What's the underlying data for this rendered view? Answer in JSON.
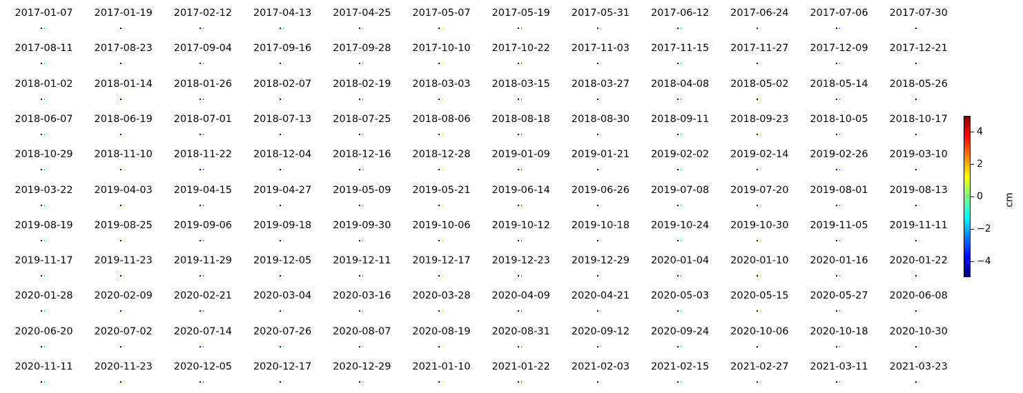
{
  "chart_data": {
    "type": "heatmap",
    "title": "",
    "layout": "grid",
    "colormap": "jet",
    "colors": {
      "outside": "#000000",
      "low": "#00007f",
      "mid": "#7fff7f",
      "high": "#7f0000"
    },
    "panels": [
      "2017-01-07",
      "2017-01-19",
      "2017-02-12",
      "2017-04-13",
      "2017-04-25",
      "2017-05-07",
      "2017-05-19",
      "2017-05-31",
      "2017-06-12",
      "2017-06-24",
      "2017-07-06",
      "2017-07-30",
      "2017-08-11",
      "2017-08-23",
      "2017-09-04",
      "2017-09-16",
      "2017-09-28",
      "2017-10-10",
      "2017-10-22",
      "2017-11-03",
      "2017-11-15",
      "2017-11-27",
      "2017-12-09",
      "2017-12-21",
      "2018-01-02",
      "2018-01-14",
      "2018-01-26",
      "2018-02-07",
      "2018-02-19",
      "2018-03-03",
      "2018-03-15",
      "2018-03-27",
      "2018-04-08",
      "2018-05-02",
      "2018-05-14",
      "2018-05-26",
      "2018-06-07",
      "2018-06-19",
      "2018-07-01",
      "2018-07-13",
      "2018-07-25",
      "2018-08-06",
      "2018-08-18",
      "2018-08-30",
      "2018-09-11",
      "2018-09-23",
      "2018-10-05",
      "2018-10-17",
      "2018-10-29",
      "2018-11-10",
      "2018-11-22",
      "2018-12-04",
      "2018-12-16",
      "2018-12-28",
      "2019-01-09",
      "2019-01-21",
      "2019-02-02",
      "2019-02-14",
      "2019-02-26",
      "2019-03-10",
      "2019-03-22",
      "2019-04-03",
      "2019-04-15",
      "2019-04-27",
      "2019-05-09",
      "2019-05-21",
      "2019-06-14",
      "2019-06-26",
      "2019-07-08",
      "2019-07-20",
      "2019-08-01",
      "2019-08-13",
      "2019-08-19",
      "2019-08-25",
      "2019-09-06",
      "2019-09-18",
      "2019-09-30",
      "2019-10-06",
      "2019-10-12",
      "2019-10-18",
      "2019-10-24",
      "2019-10-30",
      "2019-11-05",
      "2019-11-11",
      "2019-11-17",
      "2019-11-23",
      "2019-11-29",
      "2019-12-05",
      "2019-12-11",
      "2019-12-17",
      "2019-12-23",
      "2019-12-29",
      "2020-01-04",
      "2020-01-10",
      "2020-01-16",
      "2020-01-22",
      "2020-01-28",
      "2020-02-09",
      "2020-02-21",
      "2020-03-04",
      "2020-03-16",
      "2020-03-28",
      "2020-04-09",
      "2020-04-21",
      "2020-05-03",
      "2020-05-15",
      "2020-05-27",
      "2020-06-08",
      "2020-06-20",
      "2020-07-02",
      "2020-07-14",
      "2020-07-26",
      "2020-08-07",
      "2020-08-19",
      "2020-08-31",
      "2020-09-12",
      "2020-09-24",
      "2020-10-06",
      "2020-10-18",
      "2020-10-30",
      "2020-11-11",
      "2020-11-23",
      "2020-12-05",
      "2020-12-17",
      "2020-12-29",
      "2021-01-10",
      "2021-01-22",
      "2021-02-03",
      "2021-02-15",
      "2021-02-27",
      "2021-03-11",
      "2021-03-23"
    ],
    "colorbar": {
      "label": "cm",
      "range": [
        -5,
        5
      ],
      "ticks": [
        4,
        2,
        0,
        -2,
        -4
      ],
      "tick_labels": [
        "4",
        "2",
        "0",
        "−2",
        "−4"
      ]
    }
  }
}
